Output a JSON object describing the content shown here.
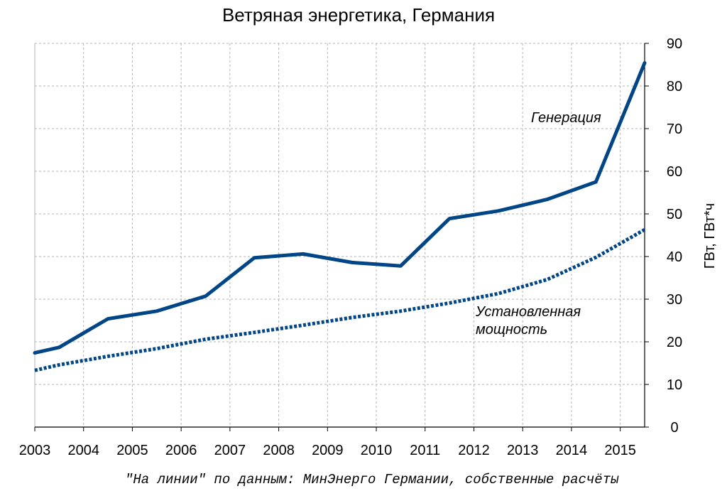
{
  "chart_data": {
    "type": "line",
    "title": "Ветряная энергетика, Германия",
    "ylabel": "ГВт, ГВт*ч",
    "xlabel": "",
    "x_ticks": [
      "2003",
      "2004",
      "2005",
      "2006",
      "2007",
      "2008",
      "2009",
      "2010",
      "2011",
      "2012",
      "2013",
      "2014",
      "2015"
    ],
    "y_ticks": [
      "0",
      "10",
      "20",
      "30",
      "40",
      "50",
      "60",
      "70",
      "80",
      "90"
    ],
    "xlim": [
      2003,
      2015.5
    ],
    "ylim": [
      0,
      90
    ],
    "grid": true,
    "y_axis_side": "right",
    "series": [
      {
        "name": "Генерация",
        "style": "solid",
        "color": "#004586",
        "x": [
          2003,
          2003.5,
          2004.5,
          2005.5,
          2006.5,
          2007.5,
          2008.5,
          2009.5,
          2010.5,
          2011.5,
          2012.5,
          2013.5,
          2014.5,
          2015.5
        ],
        "y": [
          17.4,
          18.7,
          25.4,
          27.2,
          30.7,
          39.7,
          40.6,
          38.6,
          37.8,
          48.9,
          50.7,
          53.4,
          57.5,
          85.4
        ]
      },
      {
        "name": "Установленная мощность",
        "style": "dotted",
        "color": "#004586",
        "x": [
          2003,
          2003.5,
          2004.5,
          2005.5,
          2006.5,
          2007.5,
          2008.5,
          2009.5,
          2010.5,
          2011.5,
          2012.5,
          2013.5,
          2014.5,
          2015.5
        ],
        "y": [
          13.3,
          14.6,
          16.6,
          18.4,
          20.6,
          22.2,
          23.9,
          25.7,
          27.2,
          29.1,
          31.3,
          34.6,
          39.8,
          46.3
        ]
      }
    ],
    "annotations": [
      {
        "text": "Генерация",
        "series": 0
      },
      {
        "text": "Установленная",
        "series": 1
      },
      {
        "text": "мощность",
        "series": 1
      }
    ],
    "source": "\"На линии\" по данным: МинЭнерго Германии, собственные расчёты"
  }
}
